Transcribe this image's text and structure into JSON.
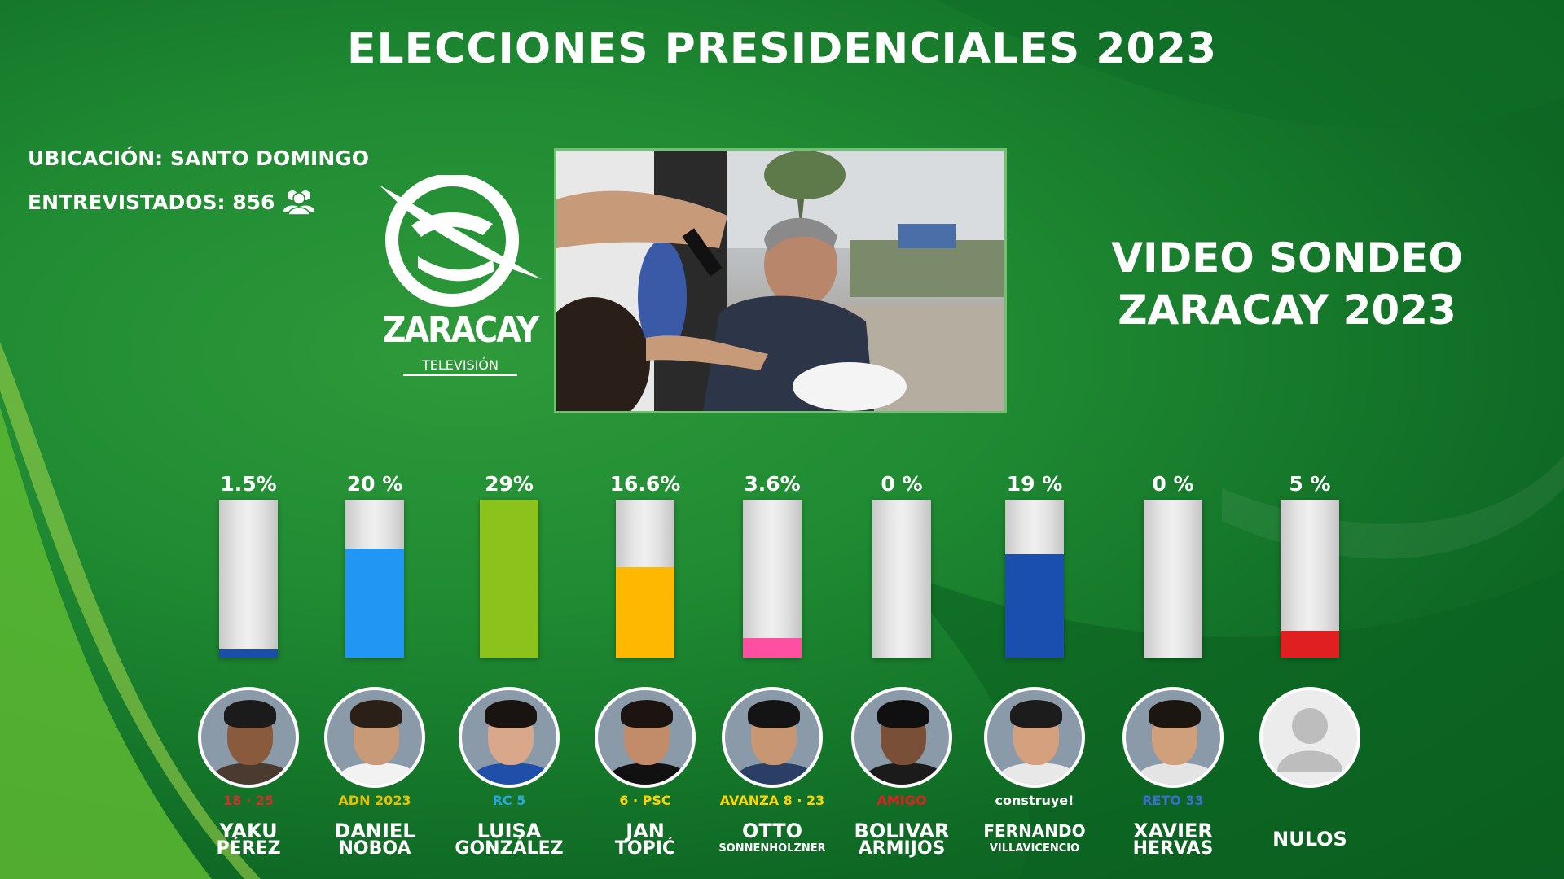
{
  "title": "ELECCIONES PRESIDENCIALES 2023",
  "location_label": "UBICACIÓN: SANTO DOMINGO",
  "interviewed_label": "ENTREVISTADOS: 856",
  "people_icon": "people-icon",
  "logo": {
    "name": "ZARACAY",
    "sub": "TELEVISIÓN"
  },
  "sondeo": {
    "line1": "VIDEO SONDEO",
    "line2": "ZARACAY 2023"
  },
  "chart_data": {
    "type": "bar",
    "title": "ELECCIONES PRESIDENCIALES 2023",
    "xlabel": "",
    "ylabel": "",
    "ylim": [
      0,
      29
    ],
    "grid": false,
    "categories": [
      "YAKU PÉREZ",
      "DANIEL NOBOA",
      "LUISA GONZÁLEZ",
      "JAN TOPIĆ",
      "OTTO SONNENHOLZNER",
      "BOLIVAR ARMIJOS",
      "FERNANDO VILLAVICENCIO",
      "XAVIER HERVAS",
      "NULOS"
    ],
    "values": [
      1.5,
      20,
      29,
      16.6,
      3.6,
      0,
      19,
      0,
      5
    ],
    "value_labels": [
      "1.5%",
      "20   %",
      "29%",
      "16.6%",
      "3.6%",
      "0 %",
      "19   %",
      "0 %",
      "5   %"
    ],
    "colors": [
      "#1a4fa8",
      "#2196f3",
      "#8cc21c",
      "#ffb800",
      "#ff4fa3",
      "#cccccc",
      "#1a4fb0",
      "#cccccc",
      "#e02020"
    ]
  },
  "candidates": [
    {
      "first": "YAKU",
      "last": "PÉREZ",
      "party": "18 · 25",
      "party_color": "#d32f2f",
      "skin": "#8a5a3c",
      "hair": "#1b1b1b",
      "shirt": "#4a3a30"
    },
    {
      "first": "DANIEL",
      "last": "NOBOA",
      "party": "ADN 2023",
      "party_color": "#e8c000",
      "skin": "#c99a78",
      "hair": "#2a2018",
      "shirt": "#f2f2f2"
    },
    {
      "first": "LUISA",
      "last": "GONZÁLEZ",
      "party": "RC 5",
      "party_color": "#29a8e0",
      "skin": "#d9a78a",
      "hair": "#1a1410",
      "shirt": "#1f4fa8"
    },
    {
      "first": "JAN",
      "last": "TOPIĆ",
      "party": "6 · PSC",
      "party_color": "#ffd400",
      "skin": "#c28c6a",
      "hair": "#1c1410",
      "shirt": "#111111"
    },
    {
      "first": "OTTO",
      "last": "SONNENHOLZNER",
      "party": "AVANZA 8 · 23",
      "party_color": "#ffd400",
      "skin": "#c89672",
      "hair": "#141414",
      "shirt": "#2b3f66"
    },
    {
      "first": "BOLIVAR",
      "last": "ARMIJOS",
      "party": "AMIGO",
      "party_color": "#e02020",
      "skin": "#7a4f38",
      "hair": "#101010",
      "shirt": "#1b1b1b"
    },
    {
      "first": "FERNANDO",
      "last": "VILLAVICENCIO",
      "party": "construye!",
      "party_color": "#ffffff",
      "skin": "#d4a07e",
      "hair": "#1c1c1c",
      "shirt": "#e8e8e8"
    },
    {
      "first": "XAVIER",
      "last": "HERVAS",
      "party": "RETO 33",
      "party_color": "#3a6fd0",
      "skin": "#d0a07c",
      "hair": "#1c1610",
      "shirt": "#e4e4e4"
    },
    {
      "first": "NULOS",
      "last": "",
      "party": "",
      "party_color": "#ffffff",
      "skin": "#bdbdbd",
      "hair": "#bdbdbd",
      "shirt": "#bdbdbd"
    }
  ]
}
